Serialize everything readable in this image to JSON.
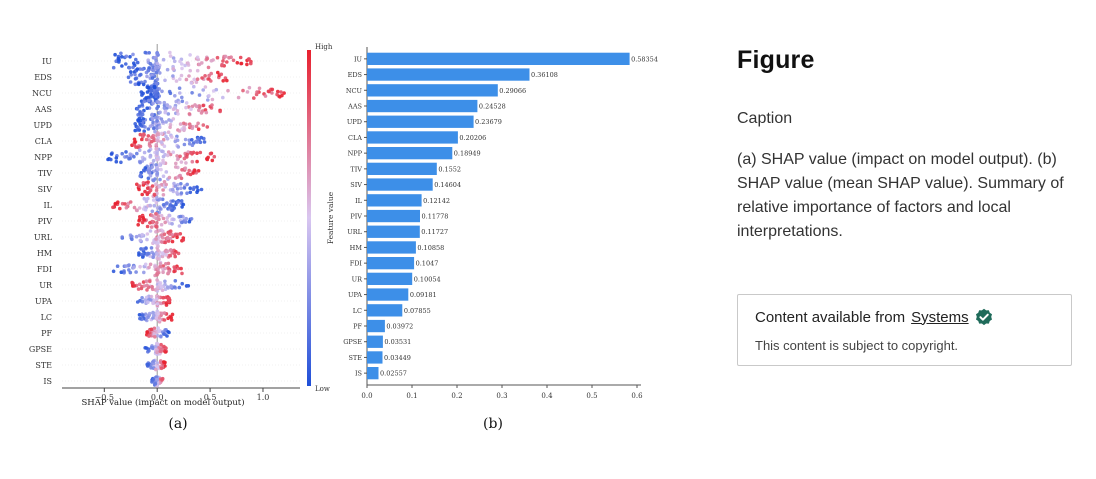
{
  "figure": {
    "title": "Figure",
    "caption_label": "Caption",
    "caption_text": "(a) SHAP value (impact on model output). (b) SHAP value (mean SHAP value). Summary of relative importance of factors and local interpretations.",
    "content_box": {
      "prefix": "Content available from ",
      "source": "Systems",
      "verified_icon": "check-badge-icon",
      "notice": "This content is subject to copyright."
    }
  },
  "chart_data": [
    {
      "type": "scatter",
      "subtype": "shap-beeswarm",
      "panel_label": "(a)",
      "xlabel": "SHAP value (impact on model output)",
      "ylabel": "",
      "x_ticks": [
        "−0.5",
        "0.0",
        "0.5",
        "1.0"
      ],
      "x_tick_values": [
        -0.5,
        0.0,
        0.5,
        1.0
      ],
      "xlim": [
        -0.9,
        1.35
      ],
      "categories": [
        "IU",
        "EDS",
        "NCU",
        "AAS",
        "UPD",
        "CLA",
        "NPP",
        "TIV",
        "SIV",
        "IL",
        "PIV",
        "URL",
        "HM",
        "FDI",
        "UR",
        "UPA",
        "LC",
        "PF",
        "GPSE",
        "STE",
        "IS"
      ],
      "spreads": [
        {
          "min": -0.42,
          "max": 0.92,
          "low_side": "left"
        },
        {
          "min": -0.28,
          "max": 0.68,
          "low_side": "left"
        },
        {
          "min": -0.15,
          "max": 1.25,
          "low_side": "left"
        },
        {
          "min": -0.2,
          "max": 0.62,
          "low_side": "left"
        },
        {
          "min": -0.22,
          "max": 0.5,
          "low_side": "left"
        },
        {
          "min": -0.25,
          "max": 0.45,
          "low_side": "right"
        },
        {
          "min": -0.48,
          "max": 0.55,
          "low_side": "left"
        },
        {
          "min": -0.2,
          "max": 0.42,
          "low_side": "left"
        },
        {
          "min": -0.2,
          "max": 0.42,
          "low_side": "right"
        },
        {
          "min": -0.42,
          "max": 0.25,
          "low_side": "right"
        },
        {
          "min": -0.18,
          "max": 0.38,
          "low_side": "right"
        },
        {
          "min": -0.4,
          "max": 0.25,
          "low_side": "left"
        },
        {
          "min": -0.2,
          "max": 0.22,
          "low_side": "left"
        },
        {
          "min": -0.42,
          "max": 0.25,
          "low_side": "left"
        },
        {
          "min": -0.25,
          "max": 0.3,
          "low_side": "right"
        },
        {
          "min": -0.2,
          "max": 0.12,
          "low_side": "left"
        },
        {
          "min": -0.18,
          "max": 0.15,
          "low_side": "left"
        },
        {
          "min": -0.1,
          "max": 0.12,
          "low_side": "right"
        },
        {
          "min": -0.12,
          "max": 0.1,
          "low_side": "left"
        },
        {
          "min": -0.1,
          "max": 0.08,
          "low_side": "left"
        },
        {
          "min": -0.05,
          "max": 0.07,
          "low_side": "left"
        }
      ],
      "colorbar": {
        "label": "Feature value",
        "high": "High",
        "low": "Low",
        "high_color": "#e8202e",
        "low_color": "#1f4fd8"
      }
    },
    {
      "type": "bar",
      "orientation": "horizontal",
      "panel_label": "(b)",
      "xlabel": "",
      "ylabel": "",
      "categories": [
        "IU",
        "EDS",
        "NCU",
        "AAS",
        "UPD",
        "CLA",
        "NPP",
        "TIV",
        "SIV",
        "IL",
        "PIV",
        "URL",
        "HM",
        "FDI",
        "UR",
        "UPA",
        "LC",
        "PF",
        "GPSE",
        "STE",
        "IS"
      ],
      "values": [
        0.58354,
        0.36108,
        0.29066,
        0.24528,
        0.23679,
        0.20206,
        0.18949,
        0.1552,
        0.14604,
        0.12142,
        0.11778,
        0.11727,
        0.10858,
        0.1047,
        0.10054,
        0.09181,
        0.07855,
        0.03972,
        0.03531,
        0.03449,
        0.02557
      ],
      "value_labels": [
        "0.58354",
        "0.36108",
        "0.29066",
        "0.24528",
        "0.23679",
        "0.20206",
        "0.18949",
        "0.1552",
        "0.14604",
        "0.12142",
        "0.11778",
        "0.11727",
        "0.10858",
        "0.1047",
        "0.10054",
        "0.09181",
        "0.07855",
        "0.03972",
        "0.03531",
        "0.03449",
        "0.02557"
      ],
      "x_ticks": [
        "0.0",
        "0.1",
        "0.2",
        "0.3",
        "0.4",
        "0.5",
        "0.6"
      ],
      "x_tick_values": [
        0,
        0.1,
        0.2,
        0.3,
        0.4,
        0.5,
        0.6
      ],
      "xlim": [
        0,
        0.6
      ],
      "bar_color": "#3d8fe8"
    }
  ]
}
